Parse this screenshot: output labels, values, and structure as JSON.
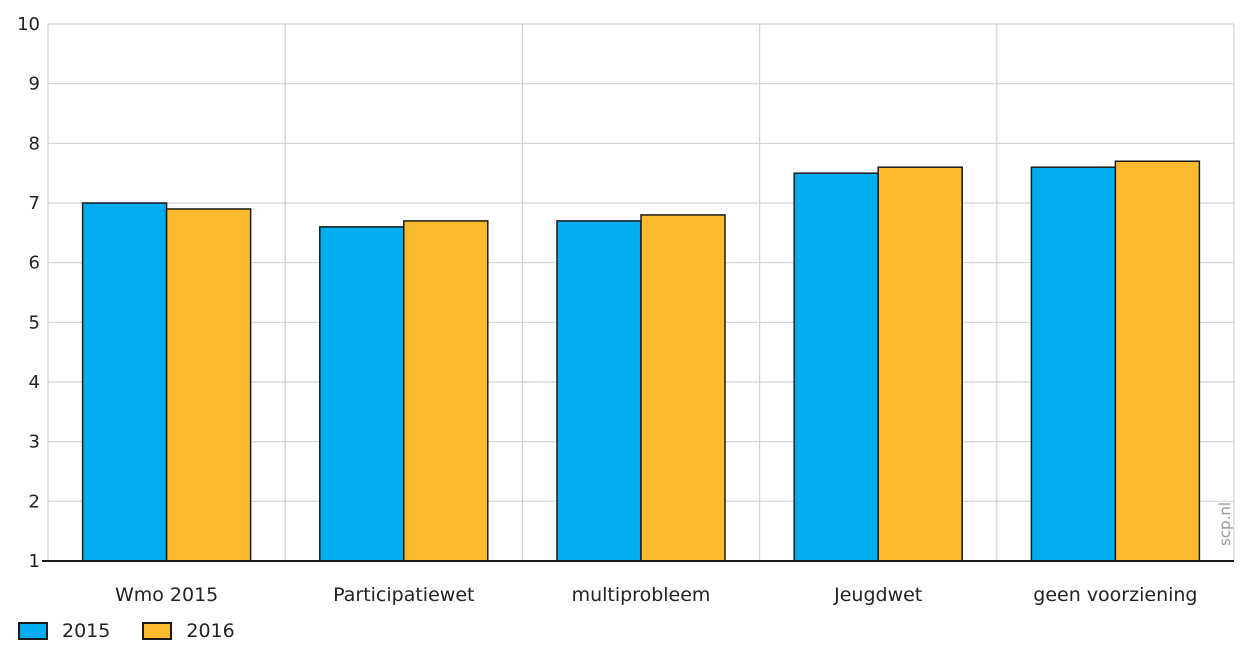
{
  "chart_data": {
    "type": "bar",
    "categories": [
      "Wmo 2015",
      "Participatiewet",
      "multiprobleem",
      "Jeugdwet",
      "geen voorziening"
    ],
    "series": [
      {
        "name": "2015",
        "color": "#00adee",
        "values": [
          7.0,
          6.6,
          6.7,
          7.5,
          7.6
        ]
      },
      {
        "name": "2016",
        "color": "#fbb92e",
        "values": [
          6.9,
          6.7,
          6.8,
          7.6,
          7.7
        ]
      }
    ],
    "ylim": [
      1,
      10
    ],
    "yticks": [
      1,
      2,
      3,
      4,
      5,
      6,
      7,
      8,
      9,
      10
    ],
    "grid": true,
    "legend_position": "bottom-left",
    "watermark": "scp.nl"
  }
}
